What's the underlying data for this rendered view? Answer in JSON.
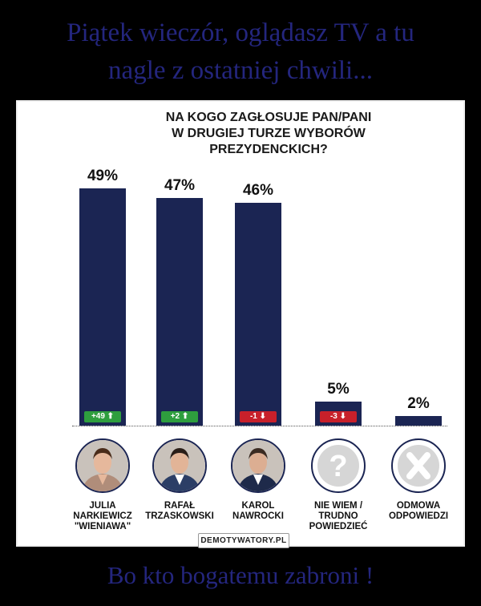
{
  "meme": {
    "title_line1": "Piątek wieczór, oglądasz TV a tu",
    "title_line2": "nagle z ostatniej chwili...",
    "subtitle": "Bo kto bogatemu zabroni !",
    "watermark": "DEMOTYWATORY.PL"
  },
  "chart_data": {
    "type": "bar",
    "title_lines": [
      "NA KOGO ZAGŁOSUJE PAN/PANI",
      "W DRUGIEJ TURZE WYBORÓW",
      "PREZYDENCKICH?"
    ],
    "categories": [
      "JULIA NARKIEWICZ \"WIENIAWA\"",
      "RAFAŁ TRZASKOWSKI",
      "KAROL NAWROCKI",
      "NIE WIEM / TRUDNO POWIEDZIEĆ",
      "ODMOWA ODPOWIEDZI"
    ],
    "values": [
      49,
      47,
      46,
      5,
      2
    ],
    "value_labels": [
      "49%",
      "47%",
      "46%",
      "5%",
      "2%"
    ],
    "changes": [
      "+49 ⬆",
      "+2 ⬆",
      "-1 ⬇",
      "-3 ⬇",
      ""
    ],
    "change_colors": [
      "#2e9e3e",
      "#2e9e3e",
      "#c8202a",
      "#c8202a",
      ""
    ],
    "name_lines": [
      [
        "JULIA",
        "NARKIEWICZ",
        "\"WIENIAWA\""
      ],
      [
        "RAFAŁ",
        "TRZASKOWSKI"
      ],
      [
        "KAROL",
        "NAWROCKI"
      ],
      [
        "NIE WIEM /",
        "TRUDNO",
        "POWIEDZIEĆ"
      ],
      [
        "ODMOWA",
        "ODPOWIEDZI"
      ]
    ],
    "icons": [
      "person-photo",
      "person-photo",
      "person-photo",
      "question-icon",
      "x-icon"
    ],
    "ylim": [
      0,
      100
    ],
    "bar_color": "#1b2553"
  }
}
